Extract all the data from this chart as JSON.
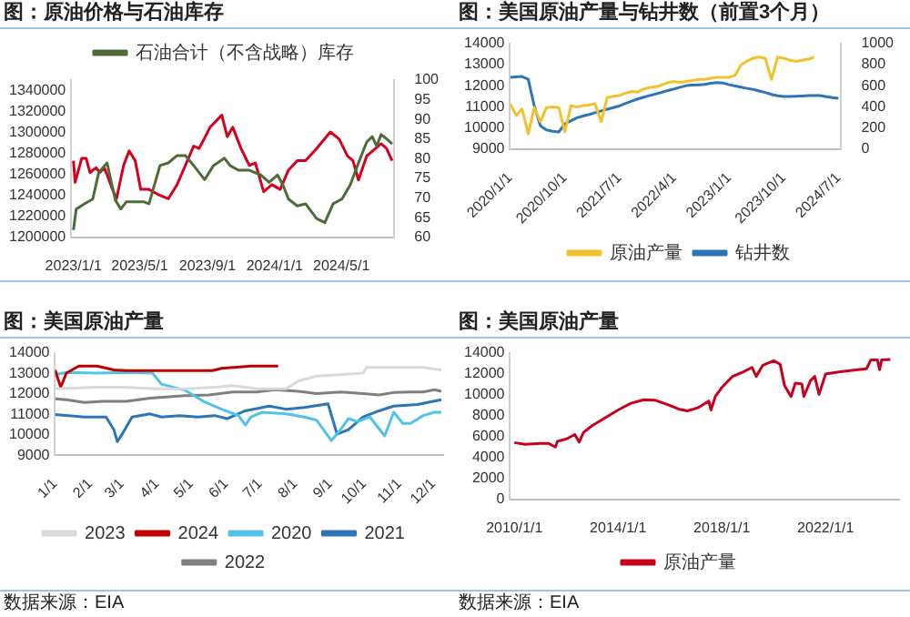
{
  "chart_data": [
    {
      "type": "line",
      "title": "图：原油价格与石油库存",
      "legend": "top",
      "xlim": [
        "2022-12-28",
        "2024-08-05"
      ],
      "xticks": [
        {
          "value": "2023-01-01",
          "label": "2023/1/1"
        },
        {
          "value": "2023-05-01",
          "label": "2023/5/1"
        },
        {
          "value": "2023-09-01",
          "label": "2023/9/1"
        },
        {
          "value": "2024-01-01",
          "label": "2024/1/1"
        },
        {
          "value": "2024-05-01",
          "label": "2024/5/1"
        }
      ],
      "ylim": [
        1200000,
        1350000
      ],
      "yticks": [
        1200000,
        1220000,
        1240000,
        1260000,
        1280000,
        1300000,
        1320000,
        1340000
      ],
      "y2lim": [
        60,
        100
      ],
      "y2ticks": [
        60,
        65,
        70,
        75,
        80,
        85,
        90,
        95,
        100
      ],
      "series": [
        {
          "name": "石油合计（不含战略）库存",
          "color": "#4e6b3a",
          "x": [
            "2023-01-01",
            "2023-01-06",
            "2023-01-21",
            "2023-02-05",
            "2023-02-16",
            "2023-03-03",
            "2023-03-18",
            "2023-03-28",
            "2023-04-07",
            "2023-05-08",
            "2023-05-18",
            "2023-05-23",
            "2023-06-07",
            "2023-06-22",
            "2023-07-08",
            "2023-07-23",
            "2023-08-07",
            "2023-08-27",
            "2023-09-12",
            "2023-10-02",
            "2023-10-12",
            "2023-10-27",
            "2023-11-16",
            "2023-12-07",
            "2023-12-22",
            "2024-01-06",
            "2024-01-16",
            "2024-01-26",
            "2024-02-11",
            "2024-02-26",
            "2024-03-17",
            "2024-04-01",
            "2024-04-16",
            "2024-05-02",
            "2024-05-17",
            "2024-06-01",
            "2024-06-16",
            "2024-06-26",
            "2024-07-04",
            "2024-07-12",
            "2024-07-22",
            "2024-08-01"
          ],
          "values": [
            1207000,
            1227000,
            1232000,
            1236500,
            1262000,
            1271000,
            1235500,
            1227000,
            1234000,
            1234000,
            1232000,
            1241000,
            1268500,
            1271000,
            1278000,
            1278000,
            1268500,
            1255000,
            1268500,
            1275500,
            1268500,
            1264000,
            1264000,
            1259500,
            1252500,
            1259500,
            1250000,
            1236500,
            1230000,
            1232000,
            1218000,
            1214000,
            1232000,
            1236500,
            1250000,
            1271000,
            1291000,
            1296000,
            1287000,
            1298000,
            1294000,
            1289000
          ]
        },
        {
          "color": "#d4001e",
          "axis": "y2",
          "x": [
            "2023-01-01",
            "2023-01-04",
            "2023-01-16",
            "2023-01-24",
            "2023-01-31",
            "2023-02-11",
            "2023-02-18",
            "2023-02-26",
            "2023-03-13",
            "2023-03-20",
            "2023-04-02",
            "2023-04-12",
            "2023-04-23",
            "2023-05-03",
            "2023-05-18",
            "2023-06-02",
            "2023-06-22",
            "2023-07-08",
            "2023-07-23",
            "2023-08-07",
            "2023-08-17",
            "2023-09-06",
            "2023-09-27",
            "2023-10-07",
            "2023-10-17",
            "2023-11-01",
            "2023-11-16",
            "2023-11-27",
            "2023-12-12",
            "2023-12-27",
            "2024-01-11",
            "2024-01-26",
            "2024-02-11",
            "2024-02-26",
            "2024-03-17",
            "2024-04-11",
            "2024-04-27",
            "2024-05-12",
            "2024-05-22",
            "2024-06-01",
            "2024-06-16",
            "2024-07-02",
            "2024-07-12",
            "2024-07-22",
            "2024-08-01"
          ],
          "values": [
            79.5,
            74.0,
            80.1,
            80.1,
            76.5,
            77.7,
            76.5,
            77.7,
            72.2,
            69.8,
            78.3,
            82.0,
            79.5,
            72.2,
            72.2,
            71.0,
            69.8,
            73.4,
            78.3,
            83.2,
            82.6,
            88.0,
            91.1,
            85.6,
            88.0,
            82.6,
            78.3,
            78.9,
            71.6,
            73.4,
            72.2,
            77.1,
            79.5,
            79.5,
            82.6,
            86.8,
            85.0,
            80.7,
            79.5,
            74.6,
            80.7,
            82.6,
            83.8,
            82.6,
            79.5
          ]
        }
      ]
    },
    {
      "type": "line",
      "title": "图：美国原油产量与钻井数（前置3个月）",
      "legend": "bottom",
      "xlim": [
        "2020-01-01",
        "2024-07-15"
      ],
      "xticks": [
        {
          "value": "2020-01-01",
          "label": "2020/1/1"
        },
        {
          "value": "2020-10-01",
          "label": "2020/10/1"
        },
        {
          "value": "2021-07-01",
          "label": "2021/7/1"
        },
        {
          "value": "2022-04-01",
          "label": "2022/4/1"
        },
        {
          "value": "2023-01-01",
          "label": "2023/1/1"
        },
        {
          "value": "2023-10-01",
          "label": "2023/10/1"
        },
        {
          "value": "2024-07-01",
          "label": "2024/7/1"
        }
      ],
      "ylim": [
        9000,
        14000
      ],
      "yticks": [
        9000,
        10000,
        11000,
        12000,
        13000,
        14000
      ],
      "y2lim": [
        0,
        1000
      ],
      "y2ticks": [
        0,
        200,
        400,
        600,
        800,
        1000
      ],
      "series": [
        {
          "name": "原油产量",
          "color": "#f2c12e",
          "x": [
            "2020-01",
            "2020-02",
            "2020-03",
            "2020-04",
            "2020-05",
            "2020-06",
            "2020-07",
            "2020-08",
            "2020-09",
            "2020-10",
            "2020-11",
            "2020-12",
            "2021-01",
            "2021-02",
            "2021-03",
            "2021-04",
            "2021-05",
            "2021-06",
            "2021-07",
            "2021-08",
            "2021-09",
            "2021-10",
            "2021-11",
            "2021-12",
            "2022-01",
            "2022-02",
            "2022-03",
            "2022-04",
            "2022-05",
            "2022-06",
            "2022-07",
            "2022-08",
            "2022-09",
            "2022-10",
            "2022-11",
            "2022-12",
            "2023-01",
            "2023-02",
            "2023-03",
            "2023-04",
            "2023-05",
            "2023-06",
            "2023-07",
            "2023-08",
            "2023-09",
            "2023-10",
            "2023-11",
            "2023-12",
            "2024-01",
            "2024-02",
            "2024-03"
          ],
          "values": [
            11150,
            10600,
            10900,
            9730,
            10970,
            10300,
            10970,
            11000,
            10970,
            9820,
            11060,
            11000,
            11060,
            11100,
            11150,
            10300,
            11440,
            11500,
            11540,
            11650,
            11730,
            11700,
            11850,
            11920,
            11950,
            12050,
            12150,
            12200,
            12150,
            12200,
            12250,
            12300,
            12300,
            12350,
            12400,
            12400,
            12400,
            12500,
            12970,
            13160,
            13300,
            13350,
            13300,
            12300,
            13350,
            13300,
            13200,
            13150,
            13200,
            13250,
            13350
          ]
        },
        {
          "name": "钻井数",
          "color": "#2e75b6",
          "axis": "y2",
          "x": [
            "2020-01",
            "2020-02",
            "2020-03",
            "2020-04",
            "2020-05",
            "2020-06",
            "2020-07",
            "2020-08",
            "2020-09",
            "2020-10",
            "2020-11",
            "2020-12",
            "2021-01",
            "2021-02",
            "2021-03",
            "2021-04",
            "2021-05",
            "2021-06",
            "2021-07",
            "2021-08",
            "2021-09",
            "2021-10",
            "2021-11",
            "2021-12",
            "2022-01",
            "2022-02",
            "2022-03",
            "2022-04",
            "2022-05",
            "2022-06",
            "2022-07",
            "2022-08",
            "2022-09",
            "2022-10",
            "2022-11",
            "2022-12",
            "2023-01",
            "2023-02",
            "2023-03",
            "2023-04",
            "2023-05",
            "2023-06",
            "2023-07",
            "2023-08",
            "2023-09",
            "2023-10",
            "2023-11",
            "2023-12",
            "2024-01",
            "2024-02",
            "2024-03",
            "2024-04",
            "2024-05",
            "2024-06",
            "2024-07"
          ],
          "values": [
            679,
            683,
            687,
            660,
            412,
            221,
            183,
            170,
            164,
            240,
            270,
            298,
            314,
            329,
            345,
            362,
            378,
            393,
            409,
            433,
            454,
            475,
            492,
            508,
            523,
            539,
            555,
            570,
            586,
            601,
            606,
            609,
            612,
            623,
            630,
            626,
            609,
            598,
            586,
            575,
            565,
            550,
            536,
            518,
            505,
            499,
            498,
            501,
            504,
            508,
            508,
            507,
            497,
            488,
            481
          ]
        }
      ]
    },
    {
      "type": "line",
      "title": "图：美国原油产量",
      "legend": "bottom",
      "annotations": [
        "数据来源：EIA"
      ],
      "xlim": [
        "--01-01",
        "--12-10"
      ],
      "xticks": [
        {
          "value": "--01-01",
          "label": "1/1"
        },
        {
          "value": "--02-01",
          "label": "2/1"
        },
        {
          "value": "--03-01",
          "label": "3/1"
        },
        {
          "value": "--04-01",
          "label": "4/1"
        },
        {
          "value": "--05-01",
          "label": "5/1"
        },
        {
          "value": "--06-01",
          "label": "6/1"
        },
        {
          "value": "--07-01",
          "label": "7/1"
        },
        {
          "value": "--08-01",
          "label": "8/1"
        },
        {
          "value": "--09-01",
          "label": "9/1"
        },
        {
          "value": "--10-01",
          "label": "10/1"
        },
        {
          "value": "--11-01",
          "label": "11/1"
        },
        {
          "value": "--12-01",
          "label": "12/1"
        }
      ],
      "ylim": [
        9000,
        14000
      ],
      "yticks": [
        9000,
        10000,
        11000,
        12000,
        13000,
        14000
      ],
      "series": [
        {
          "name": "2023",
          "color": "#d9d9d9",
          "x": [
            "--01-01",
            "--02-07",
            "--03-05",
            "--03-31",
            "--04-26",
            "--05-22",
            "--06-07",
            "--06-28",
            "--07-24",
            "--08-04",
            "--08-20",
            "--09-10",
            "--09-30",
            "--10-03",
            "--10-27",
            "--11-22",
            "--12-08"
          ],
          "values": [
            12240,
            12320,
            12320,
            12240,
            12240,
            12320,
            12400,
            12240,
            12240,
            12630,
            12860,
            12930,
            13010,
            13280,
            13280,
            13280,
            13160
          ]
        },
        {
          "name": "2024",
          "color": "#c00000",
          "x": [
            "--01-01",
            "--01-06",
            "--01-11",
            "--01-22",
            "--02-07",
            "--02-22",
            "--03-05",
            "--03-31",
            "--04-26",
            "--05-20",
            "--05-28",
            "--06-23",
            "--07-17"
          ],
          "values": [
            13160,
            12320,
            13010,
            13350,
            13350,
            13160,
            13130,
            13130,
            13130,
            13130,
            13240,
            13350,
            13350
          ]
        },
        {
          "name": "2020",
          "color": "#4fc3e8",
          "x": [
            "--01-01",
            "--01-11",
            "--02-07",
            "--03-05",
            "--03-28",
            "--04-05",
            "--04-26",
            "--05-12",
            "--05-28",
            "--06-12",
            "--06-18",
            "--06-23",
            "--07-03",
            "--07-24",
            "--08-09",
            "--08-20",
            "--09-02",
            "--09-10",
            "--09-17",
            "--09-25",
            "--10-06",
            "--10-19",
            "--10-27",
            "--11-04",
            "--11-11",
            "--11-22",
            "--12-02",
            "--12-08"
          ],
          "values": [
            12930,
            13040,
            13010,
            13040,
            13010,
            12470,
            12170,
            11630,
            11250,
            10940,
            10480,
            10870,
            11100,
            11020,
            10870,
            10710,
            9720,
            10250,
            10790,
            10640,
            10870,
            9950,
            11100,
            10560,
            10560,
            10940,
            11100,
            11100
          ]
        },
        {
          "name": "2021",
          "color": "#2e75b6",
          "x": [
            "--01-01",
            "--01-27",
            "--02-15",
            "--02-22",
            "--02-25",
            "--03-02",
            "--03-10",
            "--03-26",
            "--04-05",
            "--04-21",
            "--05-07",
            "--05-22",
            "--06-02",
            "--06-18",
            "--07-09",
            "--07-24",
            "--08-09",
            "--08-30",
            "--09-07",
            "--09-17",
            "--09-30",
            "--10-14",
            "--10-27",
            "--11-17",
            "--12-08"
          ],
          "values": [
            10990,
            10870,
            10870,
            10250,
            9670,
            10100,
            10870,
            11020,
            10870,
            10940,
            10870,
            10940,
            10790,
            11170,
            11400,
            11250,
            11330,
            11510,
            10030,
            10250,
            10870,
            11170,
            11400,
            11480,
            11710
          ]
        },
        {
          "name": "2022",
          "color": "#7f7f7f",
          "x": [
            "--01-01",
            "--01-11",
            "--01-27",
            "--02-12",
            "--03-05",
            "--03-26",
            "--04-26",
            "--05-17",
            "--06-07",
            "--06-28",
            "--07-14",
            "--08-04",
            "--08-20",
            "--09-10",
            "--09-30",
            "--10-14",
            "--10-27",
            "--11-11",
            "--11-22",
            "--12-02",
            "--12-08"
          ],
          "values": [
            11750,
            11710,
            11580,
            11630,
            11630,
            11790,
            11910,
            11940,
            12090,
            12090,
            12200,
            12120,
            12010,
            12090,
            12010,
            11940,
            12060,
            12090,
            12090,
            12200,
            12120
          ]
        }
      ]
    },
    {
      "type": "line",
      "title": "图：美国原油产量",
      "legend": "bottom",
      "annotations": [
        "数据来源：EIA"
      ],
      "xlim": [
        "2009-11-01",
        "2024-11-01"
      ],
      "xticks": [
        {
          "value": "2010-01-01",
          "label": "2010/1/1"
        },
        {
          "value": "2014-01-01",
          "label": "2014/1/1"
        },
        {
          "value": "2018-01-01",
          "label": "2018/1/1"
        },
        {
          "value": "2022-01-01",
          "label": "2022/1/1"
        }
      ],
      "ylim": [
        0,
        14000
      ],
      "yticks": [
        0,
        2000,
        4000,
        6000,
        8000,
        10000,
        12000,
        14000
      ],
      "series": [
        {
          "name": "原油产量",
          "color": "#c8001e",
          "x": [
            "2010-01",
            "2010-06",
            "2011-01",
            "2011-05",
            "2011-08",
            "2011-09",
            "2012-01",
            "2012-05",
            "2012-07",
            "2012-09",
            "2013-01",
            "2013-08",
            "2014-01",
            "2014-07",
            "2015-01",
            "2015-06",
            "2015-12",
            "2016-05",
            "2016-09",
            "2017-02",
            "2017-07",
            "2017-08",
            "2017-10",
            "2018-01",
            "2018-06",
            "2018-11",
            "2019-03",
            "2019-05",
            "2019-08",
            "2020-01",
            "2020-04",
            "2020-06",
            "2020-09",
            "2020-11",
            "2021-02",
            "2021-03",
            "2021-06",
            "2021-08",
            "2021-10",
            "2022-01",
            "2022-07",
            "2023-04",
            "2023-08",
            "2023-10",
            "2024-01",
            "2024-02",
            "2024-03",
            "2024-07"
          ],
          "values": [
            5420,
            5250,
            5340,
            5340,
            5000,
            5550,
            5760,
            6190,
            5470,
            6400,
            7040,
            7900,
            8540,
            9180,
            9520,
            9480,
            9050,
            8630,
            8450,
            8750,
            9390,
            8540,
            9820,
            10680,
            11740,
            12170,
            12600,
            11740,
            12810,
            13240,
            12900,
            10890,
            9820,
            11100,
            11020,
            9820,
            11320,
            11740,
            10030,
            11960,
            12170,
            12380,
            12470,
            13320,
            13320,
            12380,
            13320,
            13360
          ]
        }
      ]
    }
  ]
}
